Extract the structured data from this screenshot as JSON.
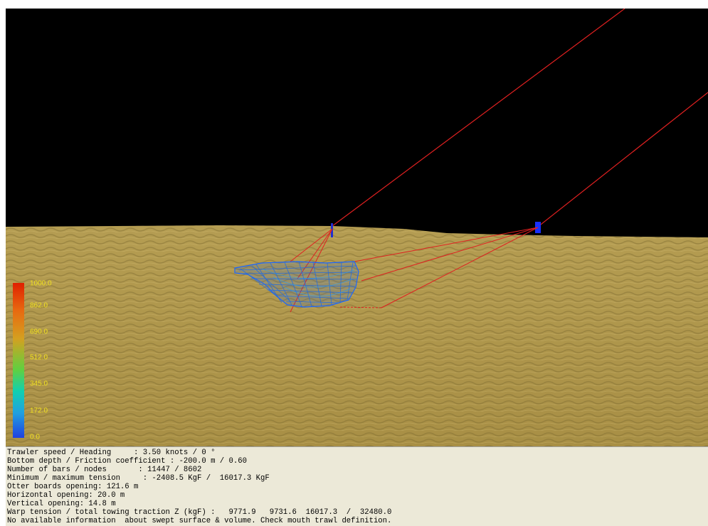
{
  "colors": {
    "sky": "#000000",
    "seabed": "#b39a4e",
    "warp_line": "#e02020",
    "net_mesh": "#1c5fe0",
    "tick_text": "#f0e020",
    "panel_bg": "#ece9d8"
  },
  "color_scale": {
    "ticks": [
      "1000.0",
      "862.0",
      "690.0",
      "512.0",
      "345.0",
      "172.0",
      "0.0"
    ]
  },
  "info_panel": {
    "lines": [
      "Trawler speed / Heading     : 3.50 knots / 0 °",
      "Bottom depth / Friction coefficient : -200.0 m / 0.60",
      "Number of bars / nodes       : 11447 / 8602",
      "Minimum / maximum tension     : -2408.5 KgF /  16017.3 KgF",
      "Otter boards opening: 121.6 m",
      "Horizontal opening: 20.0 m",
      "Vertical opening: 14.8 m",
      "Warp tension / total towing traction Z (kgF) :   9771.9   9731.6  16017.3  /  32480.0",
      "No available information  about swept surface & volume. Check mouth trawl definition."
    ]
  }
}
